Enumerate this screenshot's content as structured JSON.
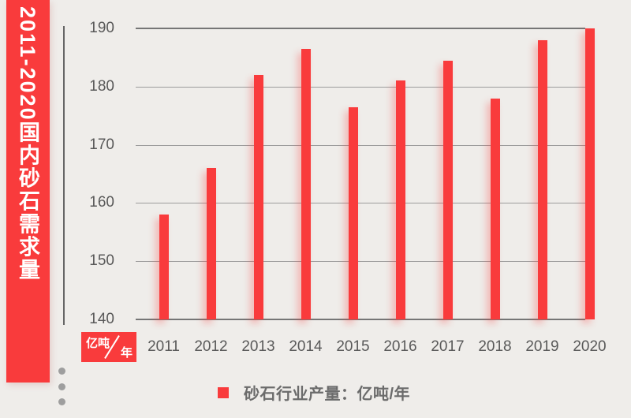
{
  "theme": {
    "background": "#efedea",
    "accent": "#f93b3c",
    "grid_color": "#9c9c9c",
    "axis_color": "#767676",
    "label_color": "#595959",
    "legend_text_color": "#6b6b6b",
    "dot_color": "#9e9e9e",
    "divider_color": "#666666"
  },
  "banner": {
    "title": "2011-2020国内砂石需求量"
  },
  "unit_badge": {
    "numerator": "亿吨",
    "denominator": "年"
  },
  "legend": {
    "label": "砂石行业产量：亿吨/年"
  },
  "chart_data": {
    "type": "bar",
    "title": "2011-2020国内砂石需求量",
    "categories": [
      "2011",
      "2012",
      "2013",
      "2014",
      "2015",
      "2016",
      "2017",
      "2018",
      "2019",
      "2020"
    ],
    "values": [
      158,
      166,
      182,
      186.5,
      176.5,
      181,
      184.5,
      178,
      188,
      190
    ],
    "series_name": "砂石行业产量",
    "unit": "亿吨/年",
    "xlabel": "",
    "ylabel": "亿吨/年",
    "ylim": [
      140,
      190
    ],
    "yticks": [
      140,
      150,
      160,
      170,
      180,
      190
    ],
    "grid": true,
    "legend_position": "bottom",
    "bar_color": "#f93b3c"
  }
}
